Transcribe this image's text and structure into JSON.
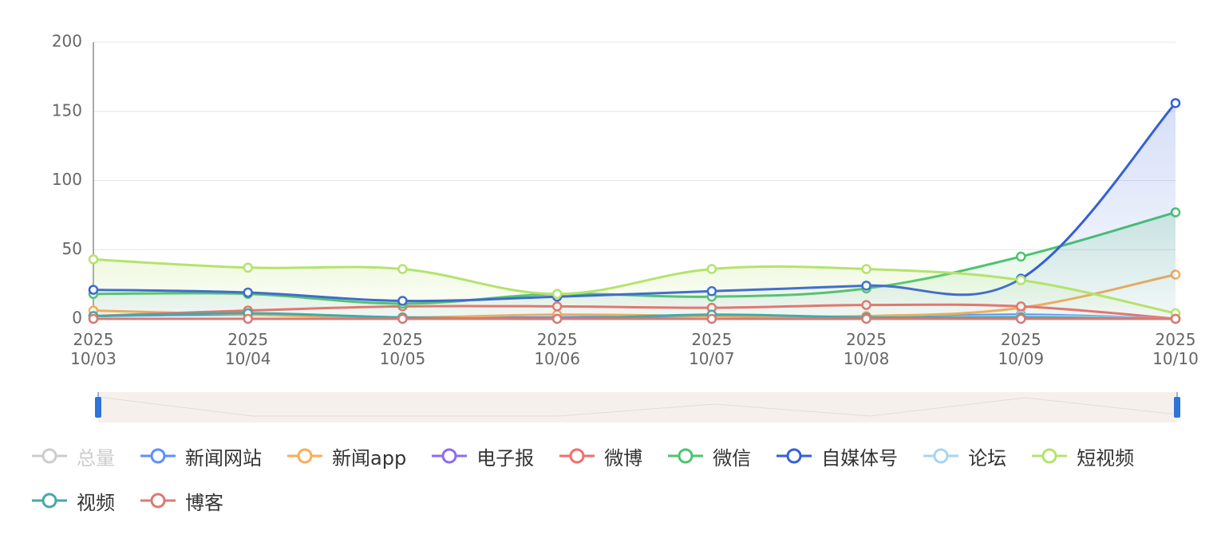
{
  "chart_data": {
    "type": "line",
    "categories": [
      "2025\n10/03",
      "2025\n10/04",
      "2025\n10/05",
      "2025\n10/06",
      "2025\n10/07",
      "2025\n10/08",
      "2025\n10/09",
      "2025\n10/10"
    ],
    "ylim": [
      0,
      200
    ],
    "yticks": [
      0,
      50,
      100,
      150,
      200
    ],
    "grid": true,
    "smooth": true,
    "series": [
      {
        "name": "总量",
        "color": "#cccccc",
        "hidden": true,
        "values": [
          null,
          null,
          null,
          null,
          null,
          null,
          null,
          null
        ]
      },
      {
        "name": "新闻网站",
        "color": "#5b8ff9",
        "values": [
          2,
          3,
          1,
          1,
          2,
          1,
          3,
          0
        ]
      },
      {
        "name": "新闻app",
        "color": "#fbac5a",
        "values": [
          6,
          3,
          1,
          3,
          2,
          2,
          8,
          32
        ]
      },
      {
        "name": "电子报",
        "color": "#8b6cf0",
        "values": [
          0,
          0,
          0,
          0,
          0,
          0,
          0,
          0
        ]
      },
      {
        "name": "微博",
        "color": "#f26d6d",
        "values": [
          2,
          6,
          9,
          9,
          8,
          10,
          9,
          0
        ]
      },
      {
        "name": "微信",
        "color": "#4cc46e",
        "area": true,
        "values": [
          18,
          18,
          11,
          18,
          16,
          22,
          45,
          77
        ]
      },
      {
        "name": "自媒体号",
        "color": "#3360d8",
        "area": true,
        "values": [
          21,
          19,
          13,
          16,
          20,
          24,
          29,
          156
        ]
      },
      {
        "name": "论坛",
        "color": "#a6d4f5",
        "values": [
          0,
          0,
          0,
          0,
          0,
          0,
          2,
          0
        ]
      },
      {
        "name": "短视频",
        "color": "#b4e36c",
        "area": true,
        "values": [
          43,
          37,
          36,
          18,
          36,
          36,
          28,
          4
        ]
      },
      {
        "name": "视频",
        "color": "#46a8a8",
        "values": [
          2,
          4,
          1,
          0,
          3,
          1,
          1,
          0
        ]
      },
      {
        "name": "博客",
        "color": "#d97b73",
        "values": [
          0,
          0,
          0,
          0,
          0,
          0,
          0,
          0
        ]
      }
    ]
  }
}
